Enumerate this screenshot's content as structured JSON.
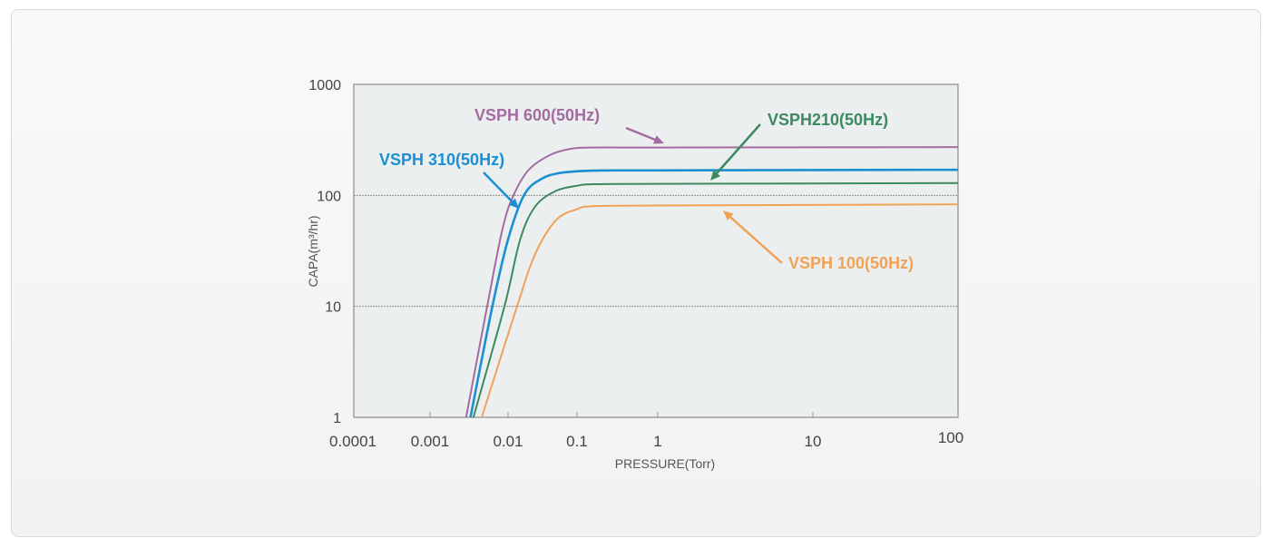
{
  "chart_data": {
    "type": "line",
    "title": "",
    "xlabel": "PRESSURE(Torr)",
    "ylabel": "CAPA(m³/hr)",
    "xscale": "log",
    "yscale": "log",
    "xlim": [
      0.0001,
      100
    ],
    "ylim": [
      1,
      1000
    ],
    "x_ticks": [
      {
        "value": 0.0001,
        "label": "0.0001"
      },
      {
        "value": 0.001,
        "label": "0.001"
      },
      {
        "value": 0.01,
        "label": "0.01"
      },
      {
        "value": 0.1,
        "label": "0.1"
      },
      {
        "value": 1,
        "label": "1"
      },
      {
        "value": 10,
        "label": "10"
      },
      {
        "value": 100,
        "label": "100"
      }
    ],
    "y_ticks": [
      {
        "value": 1,
        "label": "1"
      },
      {
        "value": 10,
        "label": "10"
      },
      {
        "value": 100,
        "label": "100"
      },
      {
        "value": 1000,
        "label": "1000"
      }
    ],
    "grid": "horizontal",
    "series": [
      {
        "name": "VSPH 600(50Hz)",
        "color": "#a36ca0",
        "points": [
          [
            0.0029,
            1
          ],
          [
            0.0054,
            10
          ],
          [
            0.0085,
            50
          ],
          [
            0.012,
            100
          ],
          [
            0.02,
            170
          ],
          [
            0.04,
            230
          ],
          [
            0.08,
            262
          ],
          [
            0.16,
            270
          ],
          [
            1,
            270
          ],
          [
            100,
            272
          ]
        ]
      },
      {
        "name": "VSPH 310(50Hz)",
        "color": "#1b8fd2",
        "points": [
          [
            0.0033,
            1
          ],
          [
            0.0063,
            10
          ],
          [
            0.01,
            40
          ],
          [
            0.017,
            100
          ],
          [
            0.03,
            140
          ],
          [
            0.06,
            160
          ],
          [
            0.16,
            167
          ],
          [
            1,
            168
          ],
          [
            100,
            170
          ]
        ]
      },
      {
        "name": "VSPH210(50Hz)",
        "color": "#3c8a5f",
        "points": [
          [
            0.0036,
            1
          ],
          [
            0.009,
            10
          ],
          [
            0.015,
            40
          ],
          [
            0.025,
            80
          ],
          [
            0.05,
            110
          ],
          [
            0.1,
            122
          ],
          [
            0.16,
            126
          ],
          [
            1,
            127
          ],
          [
            100,
            129
          ]
        ]
      },
      {
        "name": "VSPH 100(50Hz)",
        "color": "#f0a257",
        "points": [
          [
            0.0046,
            1
          ],
          [
            0.0135,
            10
          ],
          [
            0.025,
            30
          ],
          [
            0.05,
            60
          ],
          [
            0.1,
            75
          ],
          [
            0.16,
            80
          ],
          [
            1,
            81
          ],
          [
            100,
            83
          ]
        ]
      }
    ]
  }
}
